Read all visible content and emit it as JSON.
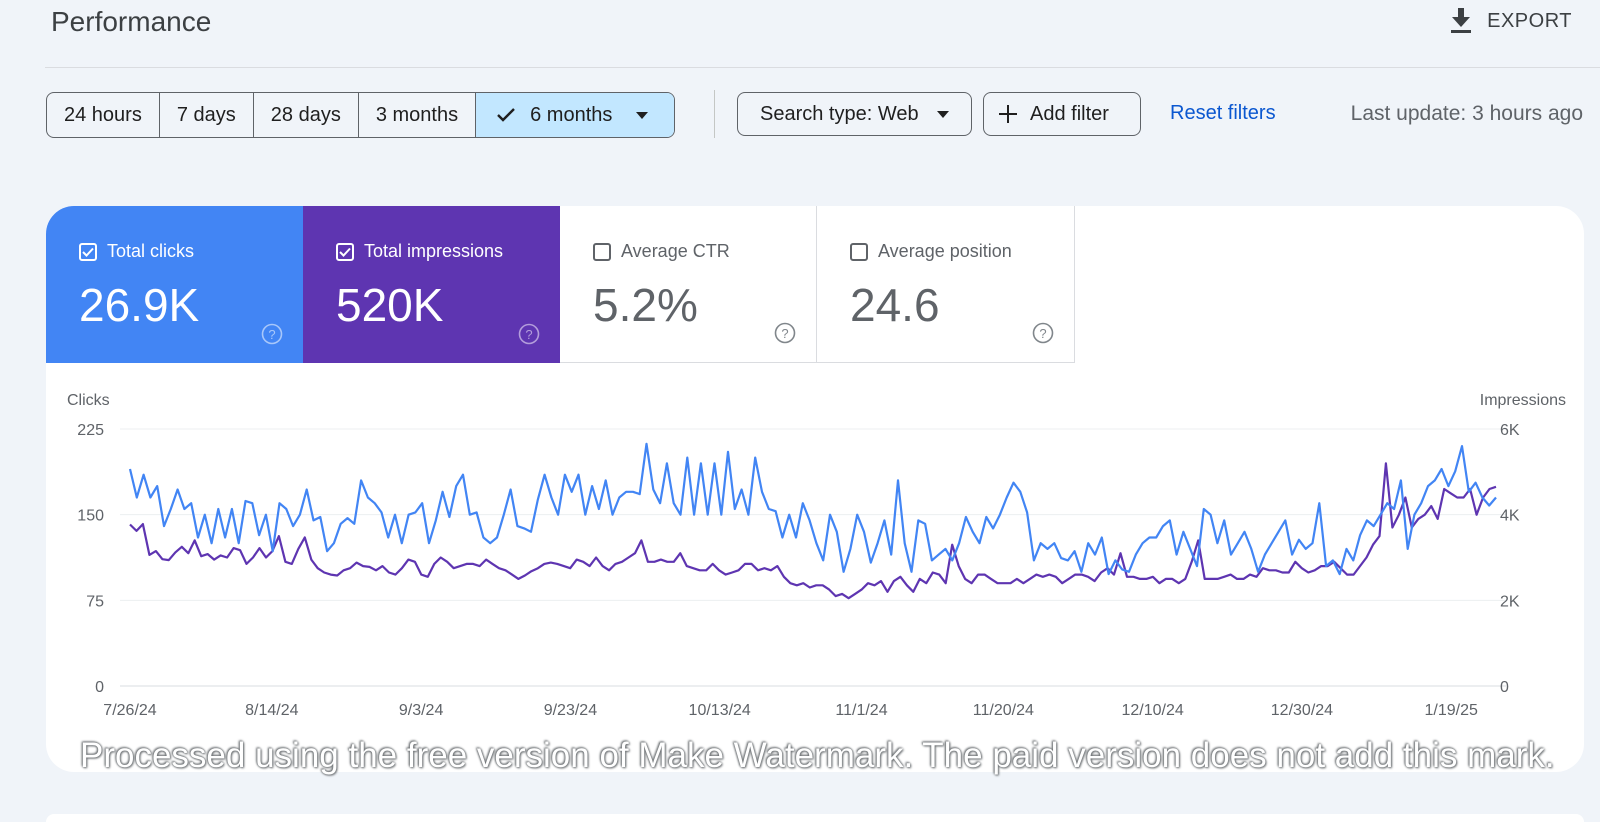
{
  "header": {
    "title": "Performance",
    "export_label": "EXPORT"
  },
  "filters": {
    "date_ranges": [
      "24 hours",
      "7 days",
      "28 days",
      "3 months",
      "6 months"
    ],
    "active_range": "6 months",
    "search_type": "Search type: Web",
    "add_filter": "Add filter",
    "reset": "Reset filters",
    "last_update": "Last update: 3 hours ago"
  },
  "metrics": [
    {
      "label": "Total clicks",
      "value": "26.9K",
      "checked": true,
      "color": "#4285f4"
    },
    {
      "label": "Total impressions",
      "value": "520K",
      "checked": true,
      "color": "#5e35b1"
    },
    {
      "label": "Average CTR",
      "value": "5.2%",
      "checked": false
    },
    {
      "label": "Average position",
      "value": "24.6",
      "checked": false
    }
  ],
  "watermark": "Processed using the free version of Make Watermark. The paid version does not add this mark.",
  "chart_data": {
    "type": "line",
    "left_axis_label": "Clicks",
    "right_axis_label": "Impressions",
    "left_ticks": [
      "225",
      "150",
      "75",
      "0"
    ],
    "right_ticks": [
      "6K",
      "4K",
      "2K",
      "0"
    ],
    "ylim_left": [
      0,
      225
    ],
    "ylim_right": [
      0,
      6000
    ],
    "x_tick_labels": [
      "7/26/24",
      "8/14/24",
      "9/3/24",
      "9/23/24",
      "10/13/24",
      "11/1/24",
      "11/20/24",
      "12/10/24",
      "12/30/24",
      "1/19/25"
    ],
    "x_start": "7/26/24",
    "x_end": "1/25/25",
    "grid": true,
    "series": [
      {
        "name": "Clicks",
        "axis": "left",
        "color": "#4285f4",
        "values": [
          190,
          165,
          185,
          165,
          175,
          140,
          155,
          172,
          155,
          160,
          130,
          150,
          125,
          155,
          130,
          155,
          125,
          162,
          160,
          132,
          150,
          118,
          160,
          155,
          140,
          150,
          172,
          145,
          148,
          118,
          125,
          142,
          147,
          142,
          180,
          165,
          160,
          152,
          130,
          150,
          125,
          150,
          152,
          160,
          125,
          145,
          170,
          148,
          175,
          185,
          150,
          152,
          130,
          125,
          130,
          150,
          172,
          140,
          138,
          135,
          163,
          185,
          165,
          150,
          185,
          170,
          185,
          150,
          175,
          155,
          180,
          150,
          165,
          170,
          170,
          168,
          212,
          172,
          160,
          195,
          160,
          150,
          200,
          150,
          195,
          150,
          195,
          150,
          205,
          155,
          172,
          150,
          200,
          170,
          155,
          153,
          130,
          150,
          130,
          160,
          145,
          125,
          110,
          150,
          135,
          100,
          120,
          150,
          135,
          108,
          125,
          145,
          115,
          180,
          125,
          100,
          145,
          142,
          110,
          115,
          120,
          110,
          125,
          148,
          135,
          125,
          148,
          138,
          150,
          165,
          178,
          170,
          152,
          110,
          125,
          120,
          125,
          112,
          110,
          118,
          100,
          125,
          115,
          130,
          98,
          110,
          102,
          100,
          115,
          125,
          130,
          130,
          140,
          145,
          115,
          135,
          120,
          105,
          155,
          150,
          125,
          145,
          115,
          125,
          135,
          120,
          100,
          115,
          125,
          135,
          145,
          115,
          128,
          120,
          125,
          160,
          105,
          110,
          98,
          120,
          110,
          132,
          145,
          140,
          150,
          160,
          155,
          180,
          120,
          150,
          160,
          175,
          180,
          190,
          175,
          188,
          210,
          170,
          178,
          165,
          158,
          165
        ]
      },
      {
        "name": "Impressions",
        "axis": "right",
        "color": "#5e35b1",
        "values": [
          3770,
          3620,
          3780,
          3060,
          3150,
          2960,
          2940,
          3120,
          3250,
          3100,
          3400,
          3030,
          3080,
          2950,
          3050,
          3000,
          3220,
          3170,
          2850,
          3000,
          3220,
          3000,
          3150,
          3500,
          2900,
          2850,
          3200,
          3470,
          2950,
          2750,
          2650,
          2600,
          2580,
          2700,
          2750,
          2880,
          2800,
          2780,
          2700,
          2800,
          2650,
          2600,
          2750,
          2950,
          2900,
          2600,
          2550,
          2850,
          3000,
          2900,
          2750,
          2800,
          2850,
          2850,
          2800,
          2950,
          2850,
          2750,
          2700,
          2600,
          2500,
          2580,
          2680,
          2750,
          2850,
          2880,
          2850,
          2800,
          2750,
          2950,
          2900,
          2800,
          3000,
          2800,
          2700,
          2850,
          2900,
          3000,
          3100,
          3400,
          2900,
          2900,
          2950,
          2900,
          2900,
          3100,
          2800,
          2750,
          2700,
          2700,
          2850,
          2700,
          2600,
          2650,
          2700,
          2850,
          2850,
          2700,
          2750,
          2700,
          2800,
          2550,
          2400,
          2350,
          2400,
          2300,
          2350,
          2350,
          2250,
          2100,
          2150,
          2050,
          2150,
          2250,
          2400,
          2350,
          2450,
          2200,
          2450,
          2550,
          2350,
          2200,
          2500,
          2400,
          2650,
          2600,
          2400,
          3300,
          2800,
          2500,
          2400,
          2600,
          2600,
          2500,
          2400,
          2400,
          2400,
          2500,
          2400,
          2500,
          2600,
          2550,
          2600,
          2550,
          2400,
          2500,
          2600,
          2600,
          2550,
          2450,
          2650,
          2750,
          2600,
          3100,
          2550,
          2550,
          2500,
          2500,
          2550,
          2400,
          2500,
          2500,
          2400,
          2500,
          2900,
          3400,
          2500,
          2500,
          2500,
          2550,
          2600,
          2500,
          2500,
          2600,
          2550,
          2750,
          2700,
          2700,
          2650,
          2650,
          2900,
          2750,
          2650,
          2700,
          2800,
          2800,
          2900,
          2750,
          2600,
          2600,
          2800,
          3000,
          3300,
          3500,
          5200,
          3700,
          4000,
          4400,
          3700,
          3900,
          4000,
          4200,
          3900,
          4600,
          4500,
          4400,
          4400,
          4600,
          4000,
          4400,
          4600,
          4650
        ]
      }
    ]
  }
}
